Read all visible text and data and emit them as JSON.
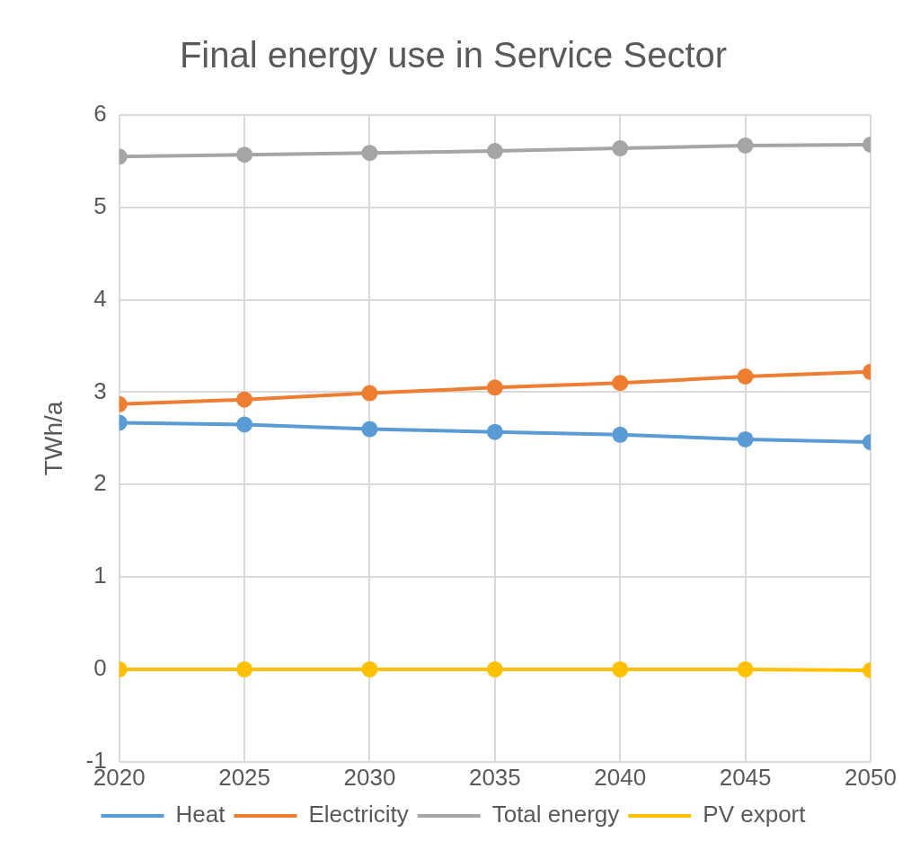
{
  "chart_data": {
    "type": "line",
    "title": "Final energy use in Service Sector",
    "ylabel": "TWh/a",
    "x": [
      2020,
      2025,
      2030,
      2035,
      2040,
      2045,
      2050
    ],
    "series": [
      {
        "name": "Heat",
        "color": "#5b9bd5",
        "values": [
          2.67,
          2.65,
          2.6,
          2.57,
          2.54,
          2.49,
          2.46
        ]
      },
      {
        "name": "Electricity",
        "color": "#ed7d31",
        "values": [
          2.87,
          2.92,
          2.99,
          3.05,
          3.1,
          3.17,
          3.22
        ]
      },
      {
        "name": "Total energy",
        "color": "#a5a5a5",
        "values": [
          5.55,
          5.57,
          5.59,
          5.61,
          5.64,
          5.67,
          5.68
        ]
      },
      {
        "name": "PV export",
        "color": "#ffc000",
        "values": [
          0,
          0,
          0,
          0,
          0,
          0,
          -0.01
        ]
      }
    ],
    "xlim": [
      2020,
      2050
    ],
    "xticks": [
      2020,
      2025,
      2030,
      2035,
      2040,
      2045,
      2050
    ],
    "ylim": [
      -1,
      6
    ],
    "yticks": [
      -1,
      0,
      1,
      2,
      3,
      4,
      5,
      6
    ],
    "grid": true,
    "legend": "bottom",
    "marker": "circle",
    "line_style": "solid"
  }
}
